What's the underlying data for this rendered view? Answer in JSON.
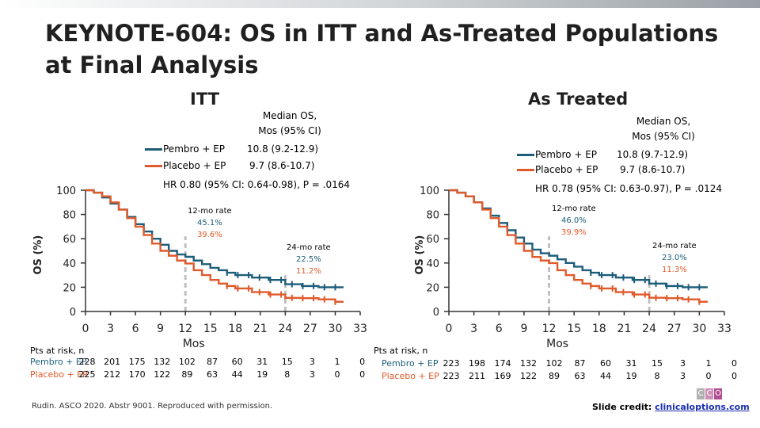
{
  "title": "KEYNOTE-604: OS in ITT and As-Treated Populations at Final Analysis",
  "colors": {
    "pembro": "#1c5d7a",
    "placebo": "#e05a2a",
    "dash": "#c0c0c0"
  },
  "chart_data": [
    {
      "type": "line",
      "title": "ITT",
      "xlabel": "Mos",
      "ylabel": "OS (%)",
      "xlim": [
        0,
        33
      ],
      "ylim": [
        0,
        100
      ],
      "x_ticks": [
        0,
        3,
        6,
        9,
        12,
        15,
        18,
        21,
        24,
        27,
        30,
        33
      ],
      "y_ticks": [
        0,
        20,
        40,
        60,
        80,
        100
      ],
      "legend_header": "Median OS, Mos (95% CI)",
      "series": [
        {
          "name": "Pembro + EP",
          "median": "10.8 (9.2-12.9)",
          "x": [
            0,
            1,
            2,
            3,
            4,
            5,
            6,
            7,
            8,
            9,
            10,
            11,
            12,
            13,
            14,
            15,
            16,
            17,
            18,
            20,
            22,
            24,
            26,
            28,
            30,
            31
          ],
          "y": [
            100,
            98,
            94,
            89,
            84,
            78,
            72,
            66,
            60,
            55,
            50,
            47,
            45.1,
            42,
            39,
            36,
            34,
            32,
            30,
            28,
            26,
            22.5,
            21,
            20,
            20,
            20
          ]
        },
        {
          "name": "Placebo + EP",
          "median": "9.7 (8.6-10.7)",
          "x": [
            0,
            1,
            2,
            3,
            4,
            5,
            6,
            7,
            8,
            9,
            10,
            11,
            12,
            13,
            14,
            15,
            16,
            17,
            18,
            20,
            22,
            24,
            26,
            28,
            30,
            31
          ],
          "y": [
            100,
            98,
            95,
            90,
            84,
            77,
            70,
            63,
            56,
            50,
            46,
            42,
            39.6,
            34,
            30,
            26,
            23,
            21,
            19,
            16,
            14,
            11.2,
            11,
            10,
            8,
            8
          ]
        }
      ],
      "hr_text": "HR 0.80 (95% CI: 0.64-0.98), P = .0164",
      "annotations": [
        {
          "label": "12-mo rate",
          "pembro": "45.1%",
          "placebo": "39.6%"
        },
        {
          "label": "24-mo rate",
          "pembro": "22.5%",
          "placebo": "11.2%"
        }
      ],
      "risk_table": {
        "header": "Pts at risk, n",
        "rows": [
          {
            "label": "Pembro + EP",
            "values": [
              "228",
              "201",
              "175",
              "132",
              "102",
              "87",
              "60",
              "31",
              "15",
              "3",
              "1",
              "0"
            ]
          },
          {
            "label": "Placebo + EP",
            "values": [
              "225",
              "212",
              "170",
              "122",
              "89",
              "63",
              "44",
              "19",
              "8",
              "3",
              "0",
              "0"
            ]
          }
        ]
      }
    },
    {
      "type": "line",
      "title": "As Treated",
      "xlabel": "Mos",
      "ylabel": "OS (%)",
      "xlim": [
        0,
        33
      ],
      "ylim": [
        0,
        100
      ],
      "x_ticks": [
        0,
        3,
        6,
        9,
        12,
        15,
        18,
        21,
        24,
        27,
        30,
        33
      ],
      "y_ticks": [
        0,
        20,
        40,
        60,
        80,
        100
      ],
      "legend_header": "Median OS, Mos (95% CI)",
      "series": [
        {
          "name": "Pembro + EP",
          "median": "10.8 (9.7-12.9)",
          "x": [
            0,
            1,
            2,
            3,
            4,
            5,
            6,
            7,
            8,
            9,
            10,
            11,
            12,
            13,
            14,
            15,
            16,
            17,
            18,
            20,
            22,
            24,
            26,
            28,
            30,
            31
          ],
          "y": [
            100,
            98,
            95,
            90,
            85,
            79,
            73,
            67,
            61,
            56,
            51,
            48,
            46.0,
            43,
            40,
            37,
            34,
            32,
            30,
            28,
            26,
            23.0,
            21,
            20,
            20,
            20
          ]
        },
        {
          "name": "Placebo + EP",
          "median": "9.7 (8.6-10.7)",
          "x": [
            0,
            1,
            2,
            3,
            4,
            5,
            6,
            7,
            8,
            9,
            10,
            11,
            12,
            13,
            14,
            15,
            16,
            17,
            18,
            20,
            22,
            24,
            26,
            28,
            30,
            31
          ],
          "y": [
            100,
            98,
            95,
            90,
            84,
            77,
            70,
            63,
            56,
            50,
            45,
            42,
            39.9,
            34,
            30,
            26,
            23,
            21,
            19,
            16,
            14,
            11.3,
            11,
            10,
            8,
            8
          ]
        }
      ],
      "hr_text": "HR 0.78 (95% CI: 0.63-0.97), P = .0124",
      "annotations": [
        {
          "label": "12-mo rate",
          "pembro": "46.0%",
          "placebo": "39.9%"
        },
        {
          "label": "24-mo rate",
          "pembro": "23.0%",
          "placebo": "11.3%"
        }
      ],
      "risk_table": {
        "header": "Pts at risk, n",
        "rows": [
          {
            "label": "Pembro + EP",
            "values": [
              "223",
              "198",
              "174",
              "132",
              "102",
              "87",
              "60",
              "31",
              "15",
              "3",
              "1",
              "0"
            ]
          },
          {
            "label": "Placebo + EP",
            "values": [
              "223",
              "211",
              "169",
              "122",
              "89",
              "63",
              "44",
              "19",
              "8",
              "3",
              "0",
              "0"
            ]
          }
        ]
      }
    }
  ],
  "footnote": "Rudin. ASCO 2020. Abstr 9001. Reproduced with permission.",
  "credit": {
    "prefix": "Slide credit: ",
    "link": "clinicaloptions.com"
  },
  "logo": {
    "letters": [
      "C",
      "C",
      "O"
    ],
    "colors": [
      "#b0b0b0",
      "#d08fb6",
      "#b04f93"
    ]
  }
}
